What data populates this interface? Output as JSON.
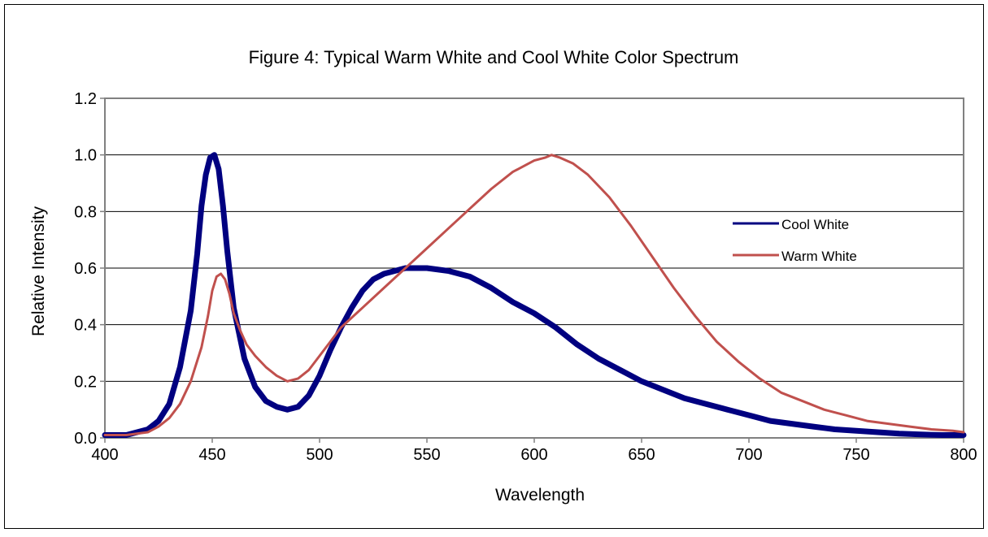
{
  "chart_data": {
    "type": "line",
    "title": "Figure 4:  Typical Warm White and Cool White Color Spectrum",
    "xlabel": "Wavelength",
    "ylabel": "Relative Intensity",
    "xlim": [
      400,
      800
    ],
    "ylim": [
      0,
      1.2
    ],
    "xticks": [
      400,
      450,
      500,
      550,
      600,
      650,
      700,
      750,
      800
    ],
    "yticks": [
      0,
      0.2,
      0.4,
      0.6,
      0.8,
      1.0,
      1.2
    ],
    "ytick_labels": [
      "0.0",
      "0.2",
      "0.4",
      "0.6",
      "0.8",
      "1.0",
      "1.2"
    ],
    "grid": "horizontal",
    "legend_position": "right",
    "series": [
      {
        "name": "Cool White",
        "color": "#000080",
        "x": [
          400,
          410,
          420,
          425,
          430,
          435,
          440,
          443,
          445,
          447,
          449,
          451,
          453,
          455,
          457,
          460,
          465,
          470,
          475,
          480,
          485,
          490,
          495,
          500,
          505,
          510,
          515,
          520,
          525,
          530,
          540,
          550,
          560,
          570,
          580,
          590,
          600,
          610,
          620,
          630,
          640,
          650,
          660,
          670,
          680,
          690,
          700,
          710,
          720,
          730,
          740,
          750,
          760,
          770,
          780,
          790,
          800
        ],
        "values": [
          0.01,
          0.01,
          0.03,
          0.06,
          0.12,
          0.25,
          0.45,
          0.65,
          0.82,
          0.93,
          0.99,
          1.0,
          0.95,
          0.82,
          0.66,
          0.46,
          0.28,
          0.18,
          0.13,
          0.11,
          0.1,
          0.11,
          0.15,
          0.22,
          0.31,
          0.39,
          0.46,
          0.52,
          0.56,
          0.58,
          0.6,
          0.6,
          0.59,
          0.57,
          0.53,
          0.48,
          0.44,
          0.39,
          0.33,
          0.28,
          0.24,
          0.2,
          0.17,
          0.14,
          0.12,
          0.1,
          0.08,
          0.06,
          0.05,
          0.04,
          0.03,
          0.025,
          0.02,
          0.015,
          0.012,
          0.01,
          0.01
        ]
      },
      {
        "name": "Warm White",
        "color": "#C0504D",
        "x": [
          400,
          410,
          420,
          425,
          430,
          435,
          440,
          445,
          448,
          450,
          452,
          454,
          456,
          458,
          460,
          463,
          466,
          470,
          475,
          480,
          485,
          490,
          495,
          500,
          505,
          510,
          520,
          530,
          540,
          550,
          560,
          570,
          580,
          590,
          600,
          605,
          608,
          612,
          618,
          625,
          635,
          645,
          655,
          665,
          675,
          685,
          695,
          705,
          715,
          725,
          735,
          745,
          755,
          765,
          775,
          785,
          795,
          800
        ],
        "values": [
          0.01,
          0.01,
          0.02,
          0.04,
          0.07,
          0.12,
          0.2,
          0.32,
          0.43,
          0.52,
          0.57,
          0.58,
          0.56,
          0.51,
          0.44,
          0.38,
          0.33,
          0.29,
          0.25,
          0.22,
          0.2,
          0.21,
          0.24,
          0.29,
          0.34,
          0.39,
          0.46,
          0.53,
          0.6,
          0.67,
          0.74,
          0.81,
          0.88,
          0.94,
          0.98,
          0.99,
          1.0,
          0.99,
          0.97,
          0.93,
          0.85,
          0.75,
          0.64,
          0.53,
          0.43,
          0.34,
          0.27,
          0.21,
          0.16,
          0.13,
          0.1,
          0.08,
          0.06,
          0.05,
          0.04,
          0.03,
          0.025,
          0.02
        ]
      }
    ]
  }
}
